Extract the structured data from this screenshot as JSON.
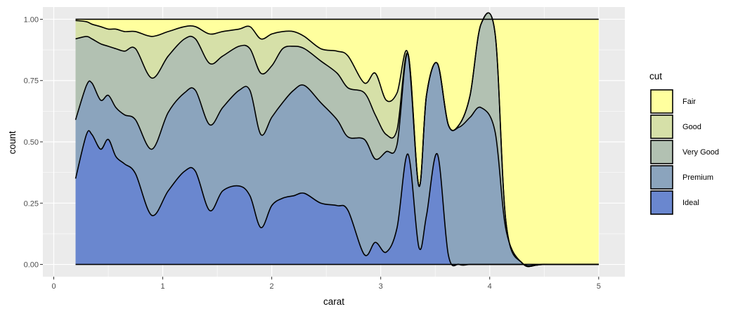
{
  "chart_data": {
    "type": "area",
    "subtype": "stacked density, position fill",
    "xlabel": "carat",
    "ylabel": "count",
    "xlim": [
      -0.1,
      5.24
    ],
    "ylim": [
      -0.05,
      1.05
    ],
    "xticks": [
      0,
      1,
      2,
      3,
      4,
      5
    ],
    "xtick_labels": [
      "0",
      "1",
      "2",
      "3",
      "4",
      "5"
    ],
    "yticks": [
      0,
      0.25,
      0.5,
      0.75,
      1.0
    ],
    "ytick_labels": [
      "0.00",
      "0.25",
      "0.50",
      "0.75",
      "1.00"
    ],
    "grid": true,
    "legend": {
      "title": "cut",
      "position": "right"
    },
    "boundaries_x": [
      0.2,
      0.3,
      0.35,
      0.43,
      0.5,
      0.57,
      0.65,
      0.75,
      0.9,
      1.05,
      1.2,
      1.3,
      1.43,
      1.55,
      1.7,
      1.8,
      1.9,
      2.0,
      2.1,
      2.2,
      2.3,
      2.45,
      2.6,
      2.7,
      2.85,
      2.95,
      3.05,
      3.15,
      3.25,
      3.35,
      3.42,
      3.52,
      3.62,
      3.72,
      3.82,
      3.92,
      4.05,
      4.15,
      4.3,
      4.5,
      5.0
    ],
    "series": [
      {
        "name": "Ideal",
        "color": "#6a87cf",
        "top": [
          0.35,
          0.53,
          0.53,
          0.47,
          0.51,
          0.44,
          0.41,
          0.37,
          0.2,
          0.3,
          0.38,
          0.38,
          0.22,
          0.3,
          0.32,
          0.28,
          0.15,
          0.24,
          0.27,
          0.28,
          0.29,
          0.25,
          0.24,
          0.22,
          0.04,
          0.09,
          0.05,
          0.15,
          0.45,
          0.07,
          0.2,
          0.45,
          0.04,
          0.0,
          0.0,
          0.0,
          0.0,
          0.0,
          0.0,
          0.0,
          0.0
        ]
      },
      {
        "name": "Premium",
        "color": "#8ba4bd",
        "top": [
          0.59,
          0.73,
          0.74,
          0.67,
          0.69,
          0.64,
          0.61,
          0.59,
          0.47,
          0.62,
          0.7,
          0.71,
          0.57,
          0.64,
          0.71,
          0.71,
          0.53,
          0.6,
          0.66,
          0.71,
          0.73,
          0.66,
          0.59,
          0.52,
          0.51,
          0.43,
          0.46,
          0.49,
          0.86,
          0.32,
          0.69,
          0.82,
          0.57,
          0.56,
          0.6,
          0.64,
          0.54,
          0.14,
          0.005,
          0.0,
          0.0
        ]
      },
      {
        "name": "Very Good",
        "color": "#b2c1b2",
        "top": [
          0.92,
          0.93,
          0.92,
          0.9,
          0.89,
          0.88,
          0.87,
          0.88,
          0.76,
          0.85,
          0.92,
          0.92,
          0.82,
          0.85,
          0.89,
          0.88,
          0.78,
          0.81,
          0.88,
          0.89,
          0.88,
          0.83,
          0.78,
          0.72,
          0.7,
          0.61,
          0.53,
          0.55,
          0.86,
          0.32,
          0.69,
          0.82,
          0.57,
          0.57,
          0.69,
          0.98,
          0.94,
          0.17,
          0.005,
          0.0,
          0.0
        ]
      },
      {
        "name": "Good",
        "color": "#d6e0a8",
        "top": [
          0.995,
          0.99,
          0.98,
          0.97,
          0.96,
          0.96,
          0.95,
          0.95,
          0.93,
          0.95,
          0.97,
          0.97,
          0.94,
          0.95,
          0.96,
          0.97,
          0.92,
          0.94,
          0.95,
          0.95,
          0.93,
          0.88,
          0.87,
          0.85,
          0.74,
          0.78,
          0.67,
          0.7,
          0.86,
          0.32,
          0.69,
          0.82,
          0.57,
          0.57,
          0.69,
          0.98,
          0.94,
          0.17,
          0.005,
          0.0,
          0.0
        ]
      },
      {
        "name": "Fair",
        "color": "#ffff9e",
        "top": [
          1,
          1,
          1,
          1,
          1,
          1,
          1,
          1,
          1,
          1,
          1,
          1,
          1,
          1,
          1,
          1,
          1,
          1,
          1,
          1,
          1,
          1,
          1,
          1,
          1,
          1,
          1,
          1,
          1,
          1,
          1,
          1,
          1,
          1,
          1,
          1,
          1,
          1,
          1,
          1,
          1
        ]
      }
    ]
  }
}
